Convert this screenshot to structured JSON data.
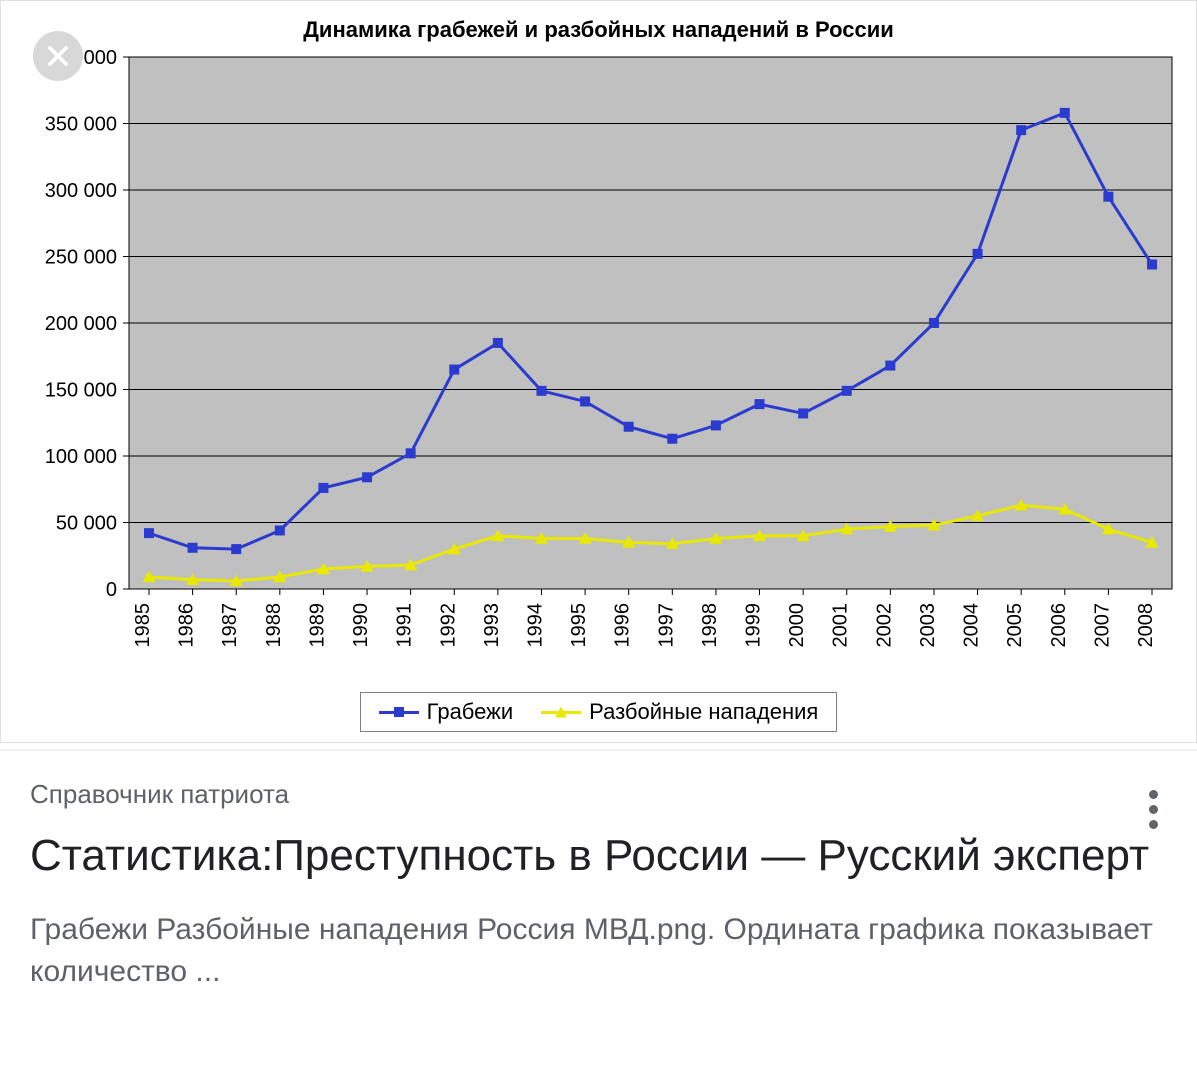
{
  "chart": {
    "type": "line",
    "title": "Динамика грабежей и разбойных нападений в России",
    "title_fontsize": 22,
    "title_fontweight": "bold",
    "plot_background": "#c0c0c0",
    "page_background": "#ffffff",
    "gridline_color": "#000000",
    "axis_color": "#000000",
    "tick_font_color": "#000000",
    "tick_fontsize": 20,
    "x_tick_rotation": -90,
    "years": [
      1985,
      1986,
      1987,
      1988,
      1989,
      1990,
      1991,
      1992,
      1993,
      1994,
      1995,
      1996,
      1997,
      1998,
      1999,
      2000,
      2001,
      2002,
      2003,
      2004,
      2005,
      2006,
      2007,
      2008
    ],
    "ylim": [
      0,
      400000
    ],
    "y_ticks": [
      0,
      50000,
      100000,
      150000,
      200000,
      250000,
      300000,
      350000,
      400000
    ],
    "y_tick_labels": [
      "0",
      "50 000",
      "100 000",
      "150 000",
      "200 000",
      "250 000",
      "300 000",
      "350 000",
      "400 000"
    ],
    "series": [
      {
        "name": "Грабежи",
        "color": "#2c3bcf",
        "marker": "square",
        "marker_size": 10,
        "line_width": 3,
        "values": [
          42000,
          31000,
          30000,
          44000,
          76000,
          84000,
          102000,
          165000,
          185000,
          149000,
          141000,
          122000,
          113000,
          123000,
          139000,
          132000,
          149000,
          168000,
          200000,
          252000,
          345000,
          358000,
          295000,
          244000
        ]
      },
      {
        "name": "Разбойные нападения",
        "color": "#e8e800",
        "marker": "triangle",
        "marker_size": 11,
        "line_width": 3,
        "values": [
          9000,
          7000,
          6000,
          9000,
          15000,
          17000,
          18000,
          30000,
          40000,
          38000,
          38000,
          35000,
          34000,
          38000,
          40000,
          40000,
          45000,
          47000,
          48000,
          55000,
          63000,
          60000,
          45000,
          35000
        ]
      }
    ],
    "legend": {
      "border_color": "#808080",
      "background": "#ffffff",
      "fontsize": 22
    }
  },
  "card": {
    "source": "Справочник патриота",
    "headline": "Статистика:Преступность в России — Русский эксперт",
    "snippet": "Грабежи Разбойные нападения Россия МВД.png. Ордината графика показывает количество ..."
  },
  "colors": {
    "card_border": "#e0e0e0",
    "text_primary": "#202124",
    "text_secondary": "#5e6268",
    "close_bg": "#d8d8d8",
    "close_x": "#ffffff",
    "more_dot": "#606468"
  }
}
